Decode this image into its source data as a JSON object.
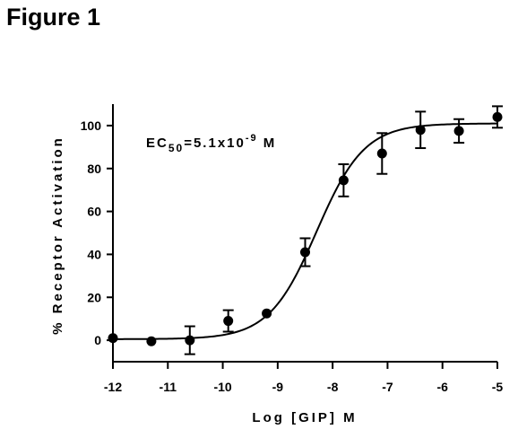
{
  "figure": {
    "title": "Figure 1"
  },
  "chart_data": {
    "type": "scatter",
    "title": "",
    "xlabel": "Log [GIP] M",
    "ylabel": "% Receptor Activation",
    "xlim": [
      -12,
      -5
    ],
    "ylim": [
      -10,
      110
    ],
    "xticks": [
      -12,
      -11,
      -10,
      -9,
      -8,
      -7,
      -6,
      -5
    ],
    "yticks": [
      0,
      20,
      40,
      60,
      80,
      100
    ],
    "grid": false,
    "annotation": {
      "text": "EC",
      "sub": "50",
      "value": "=5.1x10",
      "sup": "-9",
      "unit": " M"
    },
    "series": [
      {
        "x": [
          -12,
          -11.3,
          -10.6,
          -9.9,
          -9.2,
          -8.5,
          -7.8,
          -7.1,
          -6.4,
          -5.7,
          -5
        ],
        "y": [
          1,
          -0.5,
          0,
          9,
          12.5,
          41,
          74.5,
          87,
          98,
          97.5,
          104
        ],
        "err": [
          0,
          0,
          6.5,
          5,
          0,
          6.5,
          7.5,
          9.5,
          8.5,
          5.5,
          5
        ],
        "marker": "circle",
        "color": "#000000"
      }
    ],
    "fit": {
      "model": "sigmoidal dose-response",
      "bottom": 0.5,
      "top": 101,
      "logEC50": -8.29,
      "hill": 1
    }
  }
}
